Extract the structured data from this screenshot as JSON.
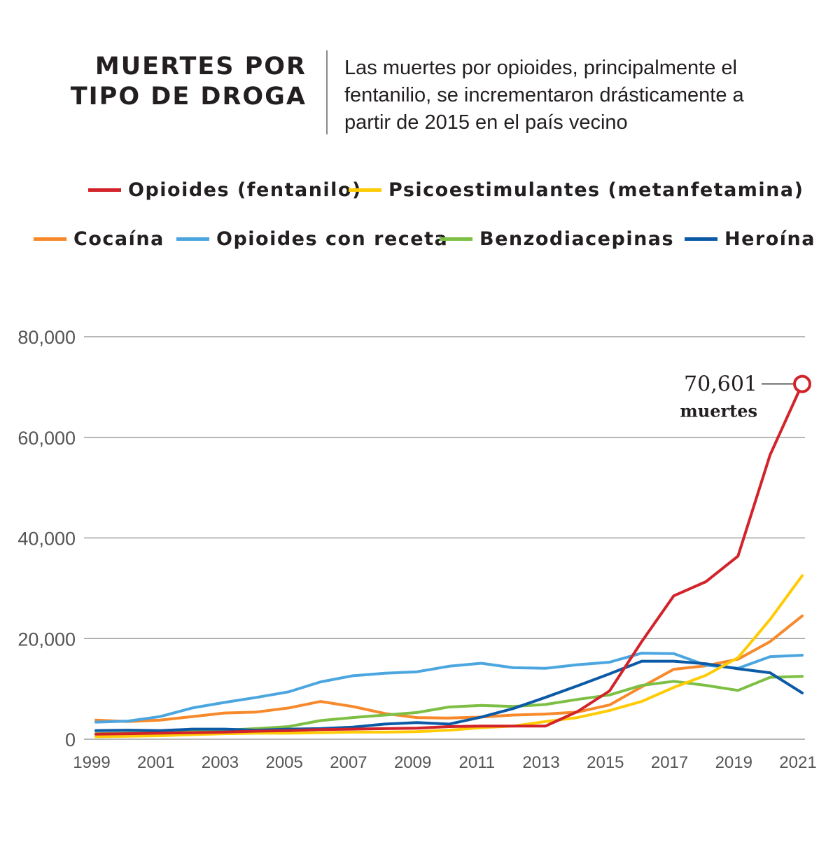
{
  "header": {
    "title_line1": "MUERTES POR",
    "title_line2": "TIPO DE DROGA",
    "subtitle": "Las muertes por opioides, principalmente el fentanilio, se incrementaron drásticamente a partir de 2015 en el país vecino"
  },
  "legend": [
    {
      "label": "Opioides (fentanilo)",
      "color": "#d2232a"
    },
    {
      "label": "Psicoestimulantes (metanfetamina)",
      "color": "#ffcb05"
    },
    {
      "label": "Cocaína",
      "color": "#f7892b"
    },
    {
      "label": "Opioides con receta",
      "color": "#4ba6e0"
    },
    {
      "label": "Benzodiacepinas",
      "color": "#7dbf44"
    },
    {
      "label": "Heroína",
      "color": "#0b5aa5"
    }
  ],
  "annotation": {
    "value": "70,601",
    "unit": "muertes"
  },
  "chart_data": {
    "type": "line",
    "title": "MUERTES POR TIPO DE DROGA",
    "xlabel": "",
    "ylabel": "",
    "ylim": [
      0,
      80000
    ],
    "yticks": [
      0,
      20000,
      40000,
      60000,
      80000
    ],
    "ytick_labels": [
      "0",
      "20,000",
      "40,000",
      "60,000",
      "80,000"
    ],
    "x": [
      1999,
      2000,
      2001,
      2002,
      2003,
      2004,
      2005,
      2006,
      2007,
      2008,
      2009,
      2010,
      2011,
      2012,
      2013,
      2014,
      2015,
      2016,
      2017,
      2018,
      2019,
      2020,
      2021
    ],
    "xtick_labels": [
      "1999",
      "2001",
      "2003",
      "2005",
      "2007",
      "2009",
      "2011",
      "2013",
      "2015",
      "2017",
      "2019",
      "2021"
    ],
    "grid": true,
    "series": [
      {
        "name": "Cocaína",
        "color": "#f7892b",
        "values": [
          3800,
          3500,
          3800,
          4500,
          5200,
          5400,
          6200,
          7500,
          6500,
          5100,
          4300,
          4200,
          4400,
          4800,
          5000,
          5400,
          6800,
          10400,
          13900,
          14600,
          15900,
          19400,
          24500
        ]
      },
      {
        "name": "Opioides con receta",
        "color": "#4ba6e0",
        "values": [
          3400,
          3600,
          4500,
          6200,
          7300,
          8300,
          9400,
          11400,
          12600,
          13100,
          13400,
          14500,
          15100,
          14200,
          14100,
          14800,
          15300,
          17100,
          17000,
          14700,
          14100,
          16400,
          16700
        ]
      },
      {
        "name": "Benzodiacepinas",
        "color": "#7dbf44",
        "values": [
          1100,
          1200,
          1300,
          1500,
          1800,
          2100,
          2500,
          3700,
          4300,
          4800,
          5300,
          6400,
          6700,
          6500,
          6900,
          7900,
          8800,
          10700,
          11500,
          10700,
          9700,
          12300,
          12500
        ]
      },
      {
        "name": "Heroína",
        "color": "#0b5aa5",
        "values": [
          1700,
          1800,
          1700,
          2000,
          2000,
          1800,
          2000,
          2100,
          2400,
          3000,
          3300,
          3000,
          4400,
          6100,
          8300,
          10600,
          13000,
          15500,
          15500,
          15000,
          14000,
          13200,
          9200
        ]
      },
      {
        "name": "Psicoestimulantes (metanfetamina)",
        "color": "#ffcb05",
        "values": [
          500,
          600,
          700,
          900,
          1100,
          1200,
          1200,
          1300,
          1400,
          1400,
          1500,
          1800,
          2300,
          2600,
          3500,
          4300,
          5700,
          7500,
          10300,
          12700,
          16200,
          23800,
          32500
        ]
      },
      {
        "name": "Opioides (fentanilo)",
        "color": "#d2232a",
        "values": [
          1000,
          1100,
          1200,
          1300,
          1400,
          1600,
          1700,
          1900,
          2000,
          2100,
          2200,
          2500,
          2600,
          2600,
          2600,
          5500,
          9600,
          19400,
          28500,
          31300,
          36400,
          56500,
          70601
        ]
      }
    ]
  }
}
